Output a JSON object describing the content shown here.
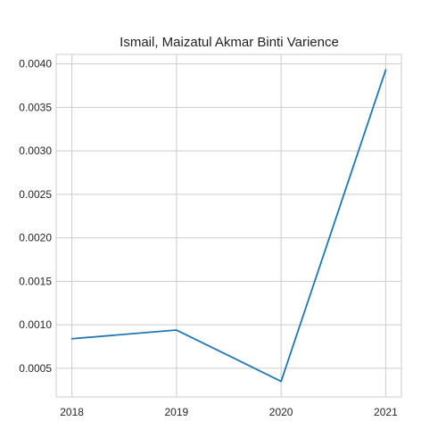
{
  "chart_data": {
    "type": "line",
    "title": "Ismail, Maizatul Akmar Binti Varience",
    "xlabel": "",
    "ylabel": "",
    "categories": [
      "2018",
      "2019",
      "2020",
      "2021"
    ],
    "x": [
      2018,
      2019,
      2020,
      2021
    ],
    "series": [
      {
        "values": [
          0.00084,
          0.00094,
          0.00035,
          0.00393
        ],
        "color": "#1f77b4"
      }
    ],
    "yticks": [
      0.0005,
      0.001,
      0.0015,
      0.002,
      0.0025,
      0.003,
      0.0035,
      0.004
    ],
    "ytick_labels": [
      "0.0005",
      "0.0010",
      "0.0015",
      "0.0020",
      "0.0025",
      "0.0030",
      "0.0035",
      "0.0040"
    ],
    "xlim": [
      2017.85,
      2021.15
    ],
    "ylim": [
      0.000171,
      0.004109
    ],
    "grid": true,
    "legend": "none"
  }
}
